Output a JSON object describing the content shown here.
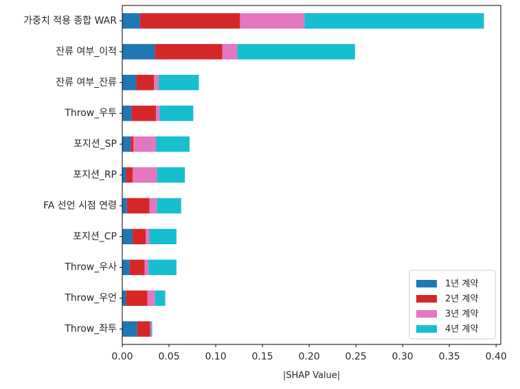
{
  "chart_data": {
    "type": "bar",
    "orientation": "horizontal",
    "stacked": true,
    "categories": [
      "Throw_좌투",
      "Throw_우언",
      "Throw_우사",
      "포지션_CP",
      "FA 선언 시점 연령",
      "포지션_RP",
      "포지션_SP",
      "Throw_우투",
      "잔류 여부_잔류",
      "잔류 여부_이적",
      "가중치 적용 종합 WAR"
    ],
    "series": [
      {
        "name": "1년 계약",
        "color": "#1f77b4",
        "values": [
          0.016,
          0.004,
          0.008,
          0.011,
          0.005,
          0.004,
          0.009,
          0.01,
          0.015,
          0.035,
          0.019
        ]
      },
      {
        "name": "2년 계약",
        "color": "#d62728",
        "values": [
          0.014,
          0.023,
          0.016,
          0.014,
          0.024,
          0.007,
          0.003,
          0.026,
          0.019,
          0.072,
          0.107
        ]
      },
      {
        "name": "3년 계약",
        "color": "#e377c2",
        "values": [
          0.001,
          0.008,
          0.004,
          0.004,
          0.008,
          0.026,
          0.024,
          0.004,
          0.005,
          0.016,
          0.069
        ]
      },
      {
        "name": "4년 계약",
        "color": "#17becf",
        "values": [
          0.001,
          0.011,
          0.03,
          0.029,
          0.026,
          0.03,
          0.036,
          0.036,
          0.043,
          0.126,
          0.192
        ]
      }
    ],
    "xlabel": "|SHAP Value|",
    "ylabel": "",
    "title": "",
    "xlim": [
      0.0,
      0.405
    ],
    "xticks": [
      0.0,
      0.05,
      0.1,
      0.15,
      0.2,
      0.25,
      0.3,
      0.35,
      0.4
    ],
    "xtick_labels": [
      "0.00",
      "0.05",
      "0.10",
      "0.15",
      "0.20",
      "0.25",
      "0.30",
      "0.35",
      "0.40"
    ],
    "grid": false,
    "legend": {
      "placement": "lower right",
      "entries": [
        "1년 계약",
        "2년 계약",
        "3년 계약",
        "4년 계약"
      ]
    }
  }
}
